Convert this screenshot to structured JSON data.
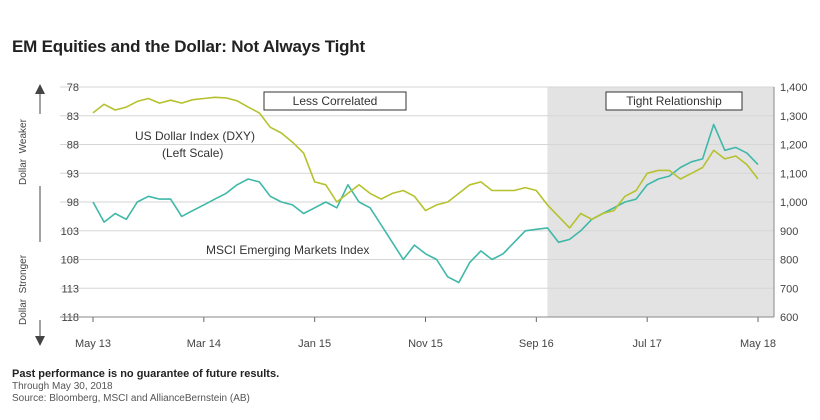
{
  "chart_data": {
    "type": "line",
    "title": "EM Equities and the Dollar: Not Always Tight",
    "x_tick_labels": [
      "May 13",
      "Mar 14",
      "Jan 15",
      "Nov 15",
      "Sep 16",
      "Jul 17",
      "May 18"
    ],
    "left_axis": {
      "ticks": [
        "78",
        "83",
        "88",
        "93",
        "98",
        "103",
        "108",
        "113",
        "118"
      ],
      "range": [
        78,
        118
      ],
      "inverted": true,
      "label_top": "Dollar  Weaker",
      "label_bottom": "Dollar  Stronger"
    },
    "right_axis": {
      "ticks": [
        "1,400",
        "1,300",
        "1,200",
        "1,100",
        "1,000",
        "900",
        "800",
        "700",
        "600"
      ],
      "range": [
        600,
        1400
      ]
    },
    "series": [
      {
        "name": "US Dollar Index (DXY)",
        "axis": "left",
        "color": "#b5c22e",
        "points": [
          [
            "May 13",
            82.5
          ],
          [
            "Jun 13",
            81.0
          ],
          [
            "Jul 13",
            82.0
          ],
          [
            "Aug 13",
            81.5
          ],
          [
            "Sep 13",
            80.5
          ],
          [
            "Oct 13",
            80.0
          ],
          [
            "Nov 13",
            80.8
          ],
          [
            "Dec 13",
            80.3
          ],
          [
            "Jan 14",
            80.8
          ],
          [
            "Feb 14",
            80.2
          ],
          [
            "Mar 14",
            80.0
          ],
          [
            "Apr 14",
            79.8
          ],
          [
            "May 14",
            79.9
          ],
          [
            "Jun 14",
            80.4
          ],
          [
            "Jul 14",
            81.5
          ],
          [
            "Aug 14",
            82.5
          ],
          [
            "Sep 14",
            85.0
          ],
          [
            "Oct 14",
            86.0
          ],
          [
            "Nov 14",
            87.6
          ],
          [
            "Dec 14",
            89.5
          ],
          [
            "Jan 15",
            94.5
          ],
          [
            "Feb 15",
            95.0
          ],
          [
            "Mar 15",
            98.0
          ],
          [
            "Apr 15",
            96.5
          ],
          [
            "May 15",
            95.0
          ],
          [
            "Jun 15",
            96.5
          ],
          [
            "Jul 15",
            97.5
          ],
          [
            "Aug 15",
            96.5
          ],
          [
            "Sep 15",
            96.0
          ],
          [
            "Oct 15",
            97.0
          ],
          [
            "Nov 15",
            99.5
          ],
          [
            "Dec 15",
            98.5
          ],
          [
            "Jan 16",
            98.0
          ],
          [
            "Feb 16",
            96.5
          ],
          [
            "Mar 16",
            95.0
          ],
          [
            "Apr 16",
            94.5
          ],
          [
            "May 16",
            96.0
          ],
          [
            "Jun 16",
            96.0
          ],
          [
            "Jul 16",
            96.0
          ],
          [
            "Aug 16",
            95.5
          ],
          [
            "Sep 16",
            96.0
          ],
          [
            "Oct 16",
            98.5
          ],
          [
            "Nov 16",
            100.5
          ],
          [
            "Dec 16",
            102.5
          ],
          [
            "Jan 17",
            100.0
          ],
          [
            "Feb 17",
            101.0
          ],
          [
            "Mar 17",
            100.0
          ],
          [
            "Apr 17",
            99.5
          ],
          [
            "May 17",
            97.0
          ],
          [
            "Jun 17",
            96.0
          ],
          [
            "Jul 17",
            93.0
          ],
          [
            "Aug 17",
            92.5
          ],
          [
            "Sep 17",
            92.5
          ],
          [
            "Oct 17",
            94.0
          ],
          [
            "Nov 17",
            93.0
          ],
          [
            "Dec 17",
            92.0
          ],
          [
            "Jan 18",
            89.0
          ],
          [
            "Feb 18",
            90.5
          ],
          [
            "Mar 18",
            90.0
          ],
          [
            "Apr 18",
            91.5
          ],
          [
            "May 18",
            94.0
          ]
        ]
      },
      {
        "name": "MSCI Emerging Markets Index",
        "axis": "right",
        "color": "#3fb8a8",
        "points": [
          [
            "May 13",
            1000
          ],
          [
            "Jun 13",
            930
          ],
          [
            "Jul 13",
            960
          ],
          [
            "Aug 13",
            940
          ],
          [
            "Sep 13",
            1000
          ],
          [
            "Oct 13",
            1020
          ],
          [
            "Nov 13",
            1010
          ],
          [
            "Dec 13",
            1010
          ],
          [
            "Jan 14",
            950
          ],
          [
            "Feb 14",
            970
          ],
          [
            "Mar 14",
            990
          ],
          [
            "Apr 14",
            1010
          ],
          [
            "May 14",
            1030
          ],
          [
            "Jun 14",
            1060
          ],
          [
            "Jul 14",
            1080
          ],
          [
            "Aug 14",
            1070
          ],
          [
            "Sep 14",
            1020
          ],
          [
            "Oct 14",
            1000
          ],
          [
            "Nov 14",
            990
          ],
          [
            "Dec 14",
            960
          ],
          [
            "Jan 15",
            980
          ],
          [
            "Feb 15",
            1000
          ],
          [
            "Mar 15",
            980
          ],
          [
            "Apr 15",
            1060
          ],
          [
            "May 15",
            1000
          ],
          [
            "Jun 15",
            980
          ],
          [
            "Jul 15",
            920
          ],
          [
            "Aug 15",
            860
          ],
          [
            "Sep 15",
            800
          ],
          [
            "Oct 15",
            850
          ],
          [
            "Nov 15",
            820
          ],
          [
            "Dec 15",
            800
          ],
          [
            "Jan 16",
            740
          ],
          [
            "Feb 16",
            720
          ],
          [
            "Mar 16",
            790
          ],
          [
            "Apr 16",
            830
          ],
          [
            "May 16",
            800
          ],
          [
            "Jun 16",
            820
          ],
          [
            "Jul 16",
            860
          ],
          [
            "Aug 16",
            900
          ],
          [
            "Sep 16",
            905
          ],
          [
            "Oct 16",
            910
          ],
          [
            "Nov 16",
            860
          ],
          [
            "Dec 16",
            870
          ],
          [
            "Jan 17",
            900
          ],
          [
            "Feb 17",
            940
          ],
          [
            "Mar 17",
            960
          ],
          [
            "Apr 17",
            980
          ],
          [
            "May 17",
            1000
          ],
          [
            "Jun 17",
            1010
          ],
          [
            "Jul 17",
            1060
          ],
          [
            "Aug 17",
            1080
          ],
          [
            "Sep 17",
            1090
          ],
          [
            "Oct 17",
            1120
          ],
          [
            "Nov 17",
            1140
          ],
          [
            "Dec 17",
            1150
          ],
          [
            "Jan 18",
            1270
          ],
          [
            "Feb 18",
            1180
          ],
          [
            "Mar 18",
            1190
          ],
          [
            "Apr 18",
            1170
          ],
          [
            "May 18",
            1130
          ]
        ]
      }
    ],
    "series_labels": {
      "dxy_line1": "US Dollar Index (DXY)",
      "dxy_line2": "(Left Scale)",
      "msci": "MSCI Emerging Markets Index"
    },
    "shaded_region": {
      "start": "Oct 16",
      "end": "May 18",
      "color": "#e3e3e3"
    },
    "regime_labels": [
      "Less Correlated",
      "Tight Relationship"
    ],
    "grid": true,
    "legend": "none"
  },
  "footnote": {
    "disclaimer": "Past performance is no guarantee of future results.",
    "through": "Through May 30, 2018",
    "source": "Source: Bloomberg, MSCI and AllianceBernstein (AB)"
  }
}
